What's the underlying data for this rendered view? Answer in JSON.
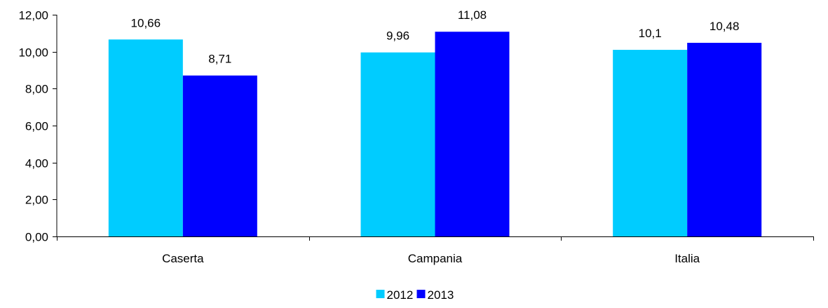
{
  "chart_data": {
    "type": "bar",
    "categories": [
      "Caserta",
      "Campania",
      "Italia"
    ],
    "series": [
      {
        "name": "2012",
        "color": "#00CCFF",
        "values": [
          10.66,
          9.96,
          10.1
        ],
        "labels": [
          "10,66",
          "9,96",
          "10,1"
        ]
      },
      {
        "name": "2013",
        "color": "#0000FF",
        "values": [
          8.71,
          11.08,
          10.48
        ],
        "labels": [
          "8,71",
          "11,08",
          "10,48"
        ]
      }
    ],
    "ylim": [
      0,
      12
    ],
    "yticks": [
      0,
      2,
      4,
      6,
      8,
      10,
      12
    ],
    "ytick_labels": [
      "0,00",
      "2,00",
      "4,00",
      "6,00",
      "8,00",
      "10,00",
      "12,00"
    ],
    "grid": false,
    "legend_position": "bottom-center",
    "title": "",
    "xlabel": "",
    "ylabel": ""
  }
}
